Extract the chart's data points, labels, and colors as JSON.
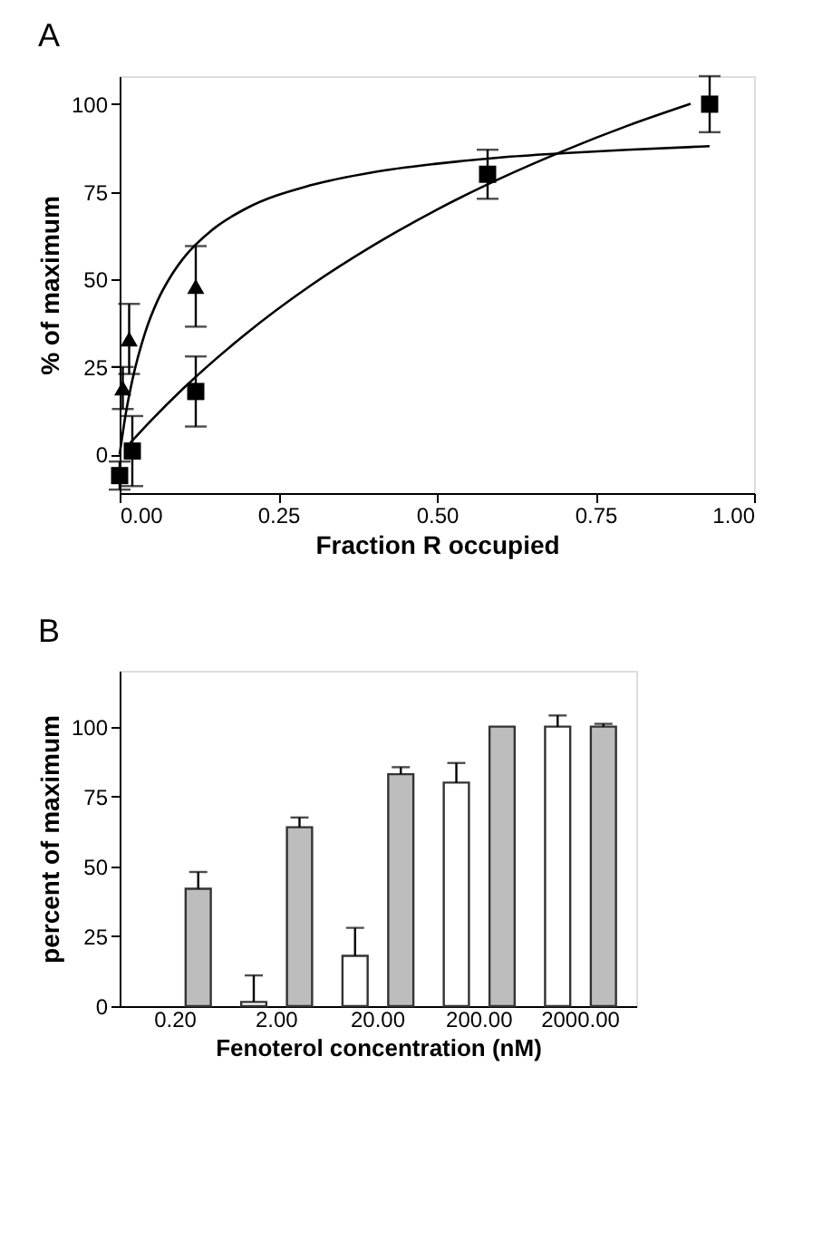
{
  "chart_data": [
    {
      "type": "scatter",
      "title": "A",
      "xlabel": "Fraction R occupied",
      "ylabel": "% of maximum",
      "xlim": [
        0,
        1
      ],
      "xticks": [
        {
          "value": 0,
          "label": "0.00"
        },
        {
          "value": 0.25,
          "label": "0.25"
        },
        {
          "value": 0.5,
          "label": "0.50"
        },
        {
          "value": 0.75,
          "label": "0.75"
        },
        {
          "value": 1,
          "label": "1.00"
        }
      ],
      "ylim": [
        -11,
        108
      ],
      "yticks": [
        0,
        25,
        50,
        75,
        100
      ],
      "grid": false,
      "series": [
        {
          "type": "scatter",
          "marker": "square",
          "color": "#000000",
          "x": [
            0.0,
            0.02,
            0.12,
            0.58,
            0.93
          ],
          "values": [
            -6,
            1,
            18,
            80,
            100
          ],
          "errors": [
            4,
            10,
            10,
            7,
            8
          ]
        },
        {
          "type": "scatter",
          "marker": "triangle",
          "color": "#000000",
          "x": [
            0.005,
            0.015,
            0.12
          ],
          "values": [
            19,
            33,
            48
          ],
          "errors": [
            6,
            10,
            11.5
          ]
        },
        {
          "type": "line",
          "marker": "none",
          "line_style": "solid",
          "color": "#000000",
          "x": [
            0,
            0.01,
            0.02,
            0.04,
            0.06,
            0.08,
            0.1,
            0.15,
            0.2,
            0.3,
            0.4,
            0.5,
            0.6,
            0.7,
            0.8,
            0.93
          ],
          "values": [
            0,
            12.0,
            21.2,
            34.7,
            44.0,
            50.7,
            55.9,
            64.7,
            70.3,
            76.8,
            80.6,
            83.0,
            84.8,
            86.0,
            87.0,
            88.0
          ]
        },
        {
          "type": "line",
          "marker": "none",
          "line_style": "solid",
          "color": "#000000",
          "x": [
            0.01,
            0.05,
            0.1,
            0.2,
            0.3,
            0.4,
            0.5,
            0.6,
            0.7,
            0.8,
            0.9
          ],
          "values": [
            2.0,
            9.8,
            18.8,
            34.6,
            48.1,
            59.7,
            69.9,
            78.8,
            86.7,
            93.8,
            100.1
          ]
        }
      ]
    },
    {
      "type": "bar",
      "title": "B",
      "xlabel": "Fenoterol concentration (nM)",
      "ylabel": "percent of maximum",
      "categories": [
        "0.20",
        "2.00",
        "20.00",
        "200.00",
        "2000.00"
      ],
      "ylim": [
        0,
        120
      ],
      "yticks": [
        0,
        25,
        50,
        75,
        100
      ],
      "grid": false,
      "series": [
        {
          "color": "#ffffff",
          "values": [
            null,
            1.5,
            18,
            80,
            100
          ],
          "errors": [
            null,
            [
              1.5,
              11
            ],
            [
              18,
              28
            ],
            [
              80,
              87
            ],
            [
              100,
              104
            ]
          ]
        },
        {
          "color": "#bdbdbd",
          "values": [
            42,
            64,
            83,
            100,
            100
          ],
          "errors": [
            [
              42,
              48
            ],
            [
              64,
              67.5
            ],
            [
              83,
              85.5
            ],
            null,
            [
              100,
              101
            ]
          ]
        }
      ]
    }
  ]
}
